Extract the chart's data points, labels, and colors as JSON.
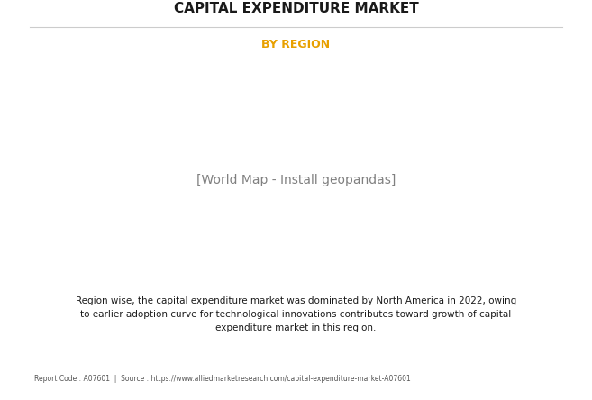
{
  "title": "CAPITAL EXPENDITURE MARKET",
  "subtitle": "BY REGION",
  "title_color": "#1a1a1a",
  "subtitle_color": "#E8A000",
  "body_text": "Region wise, the capital expenditure market was dominated by North America in 2022, owing\nto earlier adoption curve for technological innovations contributes toward growth of capital\nexpendiure market in this region.",
  "body_text_full": "Region wise, the capital expenditure market was dominated by North America in 2022, owing to earlier adoption curve for technological innovations contributes toward growth of capital expenditure market in this region.",
  "footer_text": "Report Code : A07601  |  Source : https://www.alliedmarketresearch.com/capital-expenditure-market-A07601",
  "background_color": "#ffffff",
  "map_green": "#8fac6e",
  "map_highlight_blue": "#c8d8e8",
  "map_border": "#a8c4d8",
  "shadow_color": "#888888"
}
